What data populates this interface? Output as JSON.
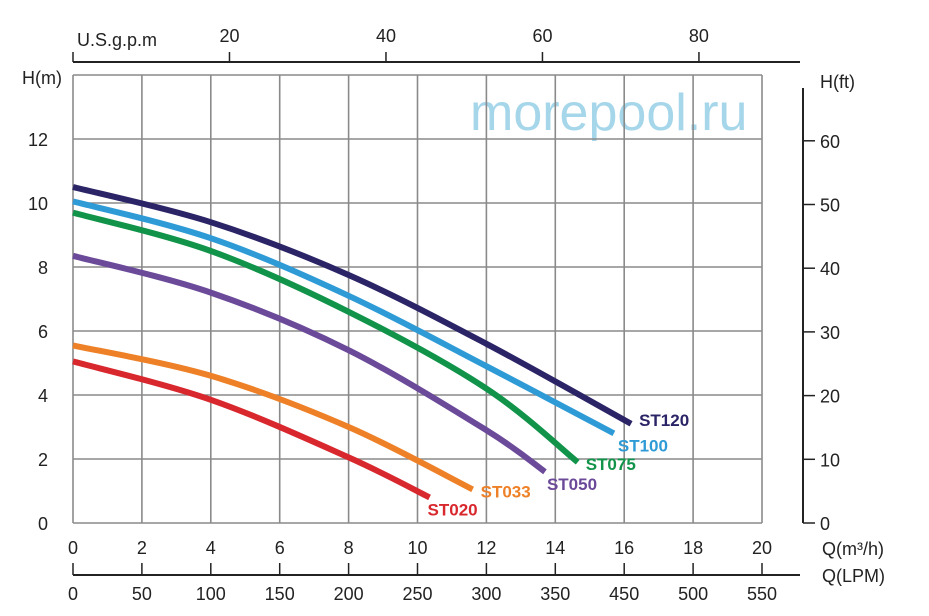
{
  "chart_data": {
    "type": "line",
    "title": "",
    "xlabel": "Q(m³/h)",
    "ylabel": "H(m)",
    "x_secondary_bottom_label": "Q(LPM)",
    "x_secondary_top_label": "U.S.g.p.m",
    "y_secondary_label": "H(ft)",
    "xlim": [
      0,
      20
    ],
    "ylim": [
      0,
      14
    ],
    "grid": true,
    "x_ticks": [
      "0",
      "2",
      "4",
      "6",
      "8",
      "10",
      "12",
      "14",
      "16",
      "18",
      "20"
    ],
    "y_ticks": [
      "0",
      "2",
      "4",
      "6",
      "8",
      "10",
      "12"
    ],
    "lpm_ticks": [
      "0",
      "50",
      "100",
      "150",
      "200",
      "250",
      "300",
      "350",
      "450",
      "500",
      "550"
    ],
    "gpm_ticks": [
      {
        "label": "20",
        "value": 20
      },
      {
        "label": "40",
        "value": 40
      },
      {
        "label": "60",
        "value": 60
      },
      {
        "label": "80",
        "value": 80
      }
    ],
    "ft_ticks": [
      "0",
      "10",
      "20",
      "30",
      "40",
      "50",
      "60"
    ],
    "series": [
      {
        "name": "ST120",
        "color": "#2b2466",
        "points": [
          [
            0,
            10.5
          ],
          [
            4,
            9.4
          ],
          [
            8,
            7.75
          ],
          [
            12,
            5.6
          ],
          [
            16.2,
            3.1
          ]
        ]
      },
      {
        "name": "ST100",
        "color": "#2f9bd6",
        "points": [
          [
            0,
            10.05
          ],
          [
            4,
            8.9
          ],
          [
            8,
            7.1
          ],
          [
            12,
            4.9
          ],
          [
            15.7,
            2.8
          ]
        ]
      },
      {
        "name": "ST075",
        "color": "#11934a",
        "points": [
          [
            0,
            9.7
          ],
          [
            4,
            8.5
          ],
          [
            8,
            6.6
          ],
          [
            12,
            4.2
          ],
          [
            14.65,
            1.9
          ]
        ]
      },
      {
        "name": "ST050",
        "color": "#6c4a9a",
        "points": [
          [
            0,
            8.35
          ],
          [
            4,
            7.2
          ],
          [
            8,
            5.4
          ],
          [
            12,
            2.9
          ],
          [
            13.7,
            1.6
          ]
        ]
      },
      {
        "name": "ST033",
        "color": "#ee8127",
        "points": [
          [
            0,
            5.55
          ],
          [
            4,
            4.6
          ],
          [
            8,
            3.0
          ],
          [
            11.6,
            1.05
          ]
        ]
      },
      {
        "name": "ST020",
        "color": "#d9272e",
        "points": [
          [
            0,
            5.05
          ],
          [
            4,
            3.85
          ],
          [
            8,
            2.05
          ],
          [
            10.35,
            0.8
          ]
        ]
      }
    ]
  },
  "watermark": {
    "text": "morepool.ru",
    "color": "#a6d6ea"
  }
}
